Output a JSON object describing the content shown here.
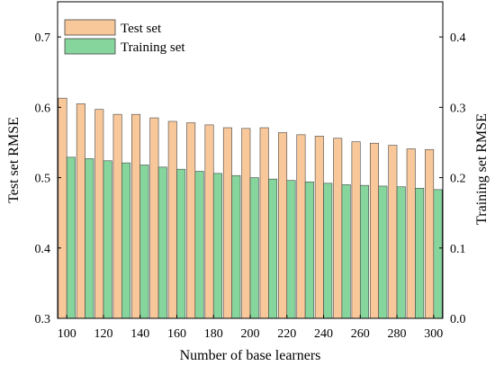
{
  "chart_data": {
    "type": "bar",
    "xlabel": "Number of base learners",
    "ylabel_left": "Test set RMSE",
    "ylabel_right": "Training set RMSE",
    "ylim_left": [
      0.3,
      0.75
    ],
    "ylim_right": [
      0.0,
      0.45
    ],
    "yticks_left": [
      0.3,
      0.4,
      0.5,
      0.6,
      0.7
    ],
    "yticks_right": [
      0.0,
      0.1,
      0.2,
      0.3,
      0.4
    ],
    "yticks_left_labels": [
      "0.3",
      "0.4",
      "0.5",
      "0.6",
      "0.7"
    ],
    "yticks_right_labels": [
      "0.0",
      "0.1",
      "0.2",
      "0.3",
      "0.4"
    ],
    "categories": [
      100,
      110,
      120,
      130,
      140,
      150,
      160,
      170,
      180,
      190,
      200,
      210,
      220,
      230,
      240,
      250,
      260,
      270,
      280,
      290,
      300
    ],
    "xtick_labels": [
      "100",
      "120",
      "140",
      "160",
      "180",
      "200",
      "220",
      "240",
      "260",
      "280",
      "300"
    ],
    "xticks": [
      100,
      120,
      140,
      160,
      180,
      200,
      220,
      240,
      260,
      280,
      300
    ],
    "legend_position": "top-left",
    "series": [
      {
        "name": "Test set",
        "axis": "left",
        "color": "#f8c89a",
        "values": [
          0.613,
          0.605,
          0.597,
          0.59,
          0.59,
          0.585,
          0.58,
          0.578,
          0.575,
          0.571,
          0.57,
          0.571,
          0.564,
          0.561,
          0.559,
          0.556,
          0.551,
          0.549,
          0.546,
          0.541,
          0.54
        ]
      },
      {
        "name": "Training set",
        "axis": "right",
        "color": "#86d59c",
        "values": [
          0.229,
          0.227,
          0.224,
          0.221,
          0.218,
          0.215,
          0.212,
          0.209,
          0.206,
          0.203,
          0.2,
          0.198,
          0.196,
          0.194,
          0.192,
          0.19,
          0.189,
          0.188,
          0.187,
          0.185,
          0.183
        ]
      }
    ]
  }
}
